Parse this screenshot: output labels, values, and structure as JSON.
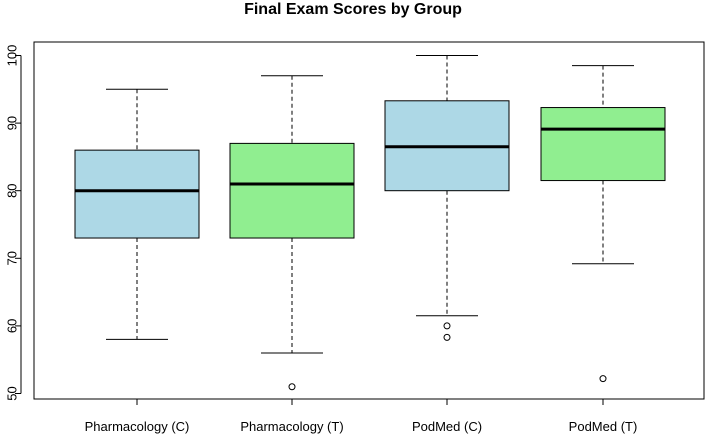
{
  "chart_data": {
    "type": "boxplot",
    "title": "Final Exam Scores by Group",
    "xlabel": "",
    "ylabel": "",
    "ylim": [
      49,
      102
    ],
    "yticks": [
      50,
      60,
      70,
      80,
      90,
      100
    ],
    "grid": false,
    "categories": [
      "Pharmacology  (C)",
      "Pharmacology (T)",
      "PodMed (C)",
      "PodMed (T)"
    ],
    "boxes": [
      {
        "name": "Pharmacology  (C)",
        "color": "#add8e6",
        "whisker_low": 58,
        "q1": 73,
        "median": 80,
        "q3": 86,
        "whisker_high": 95,
        "outliers": []
      },
      {
        "name": "Pharmacology (T)",
        "color": "#90ee90",
        "whisker_low": 56,
        "q1": 73,
        "median": 81,
        "q3": 87,
        "whisker_high": 97,
        "outliers": [
          51
        ]
      },
      {
        "name": "PodMed (C)",
        "color": "#add8e6",
        "whisker_low": 61.5,
        "q1": 80,
        "median": 86.5,
        "q3": 93.3,
        "whisker_high": 100,
        "outliers": [
          60,
          58.3
        ]
      },
      {
        "name": "PodMed (T)",
        "color": "#90ee90",
        "whisker_low": 69.2,
        "q1": 81.5,
        "median": 89.1,
        "q3": 92.3,
        "whisker_high": 98.5,
        "outliers": [
          52.2
        ]
      }
    ]
  }
}
